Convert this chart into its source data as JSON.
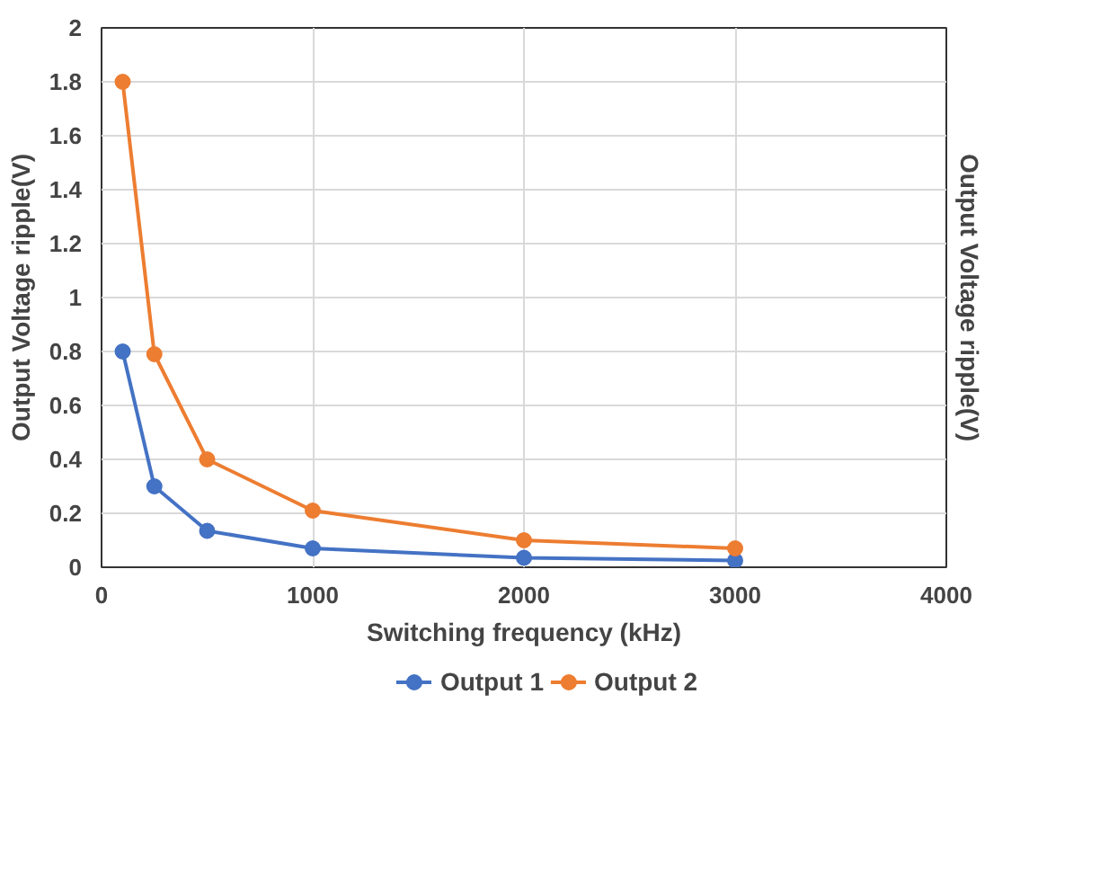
{
  "chart_data": {
    "type": "line",
    "xlabel": "Switching frequency (kHz)",
    "ylabel": "Output Voltage ripple(V)",
    "y2label": "Output Voltage ripple(V)",
    "x": [
      100,
      250,
      500,
      1000,
      2000,
      3000
    ],
    "series": [
      {
        "name": "Output 1",
        "color": "#4472c4",
        "values": [
          0.8,
          0.3,
          0.135,
          0.07,
          0.035,
          0.025
        ]
      },
      {
        "name": "Output 2",
        "color": "#ed7d31",
        "values": [
          1.8,
          0.79,
          0.4,
          0.21,
          0.1,
          0.07
        ]
      }
    ],
    "xlim": [
      0,
      4000
    ],
    "xticks": [
      0,
      1000,
      2000,
      3000,
      4000
    ],
    "ylim": [
      0,
      2
    ],
    "yticks": [
      0,
      0.2,
      0.4,
      0.6,
      0.8,
      1,
      1.2,
      1.4,
      1.6,
      1.8,
      2
    ],
    "grid": true,
    "legend": "bottom",
    "marker": "circle",
    "line_style": "solid"
  }
}
